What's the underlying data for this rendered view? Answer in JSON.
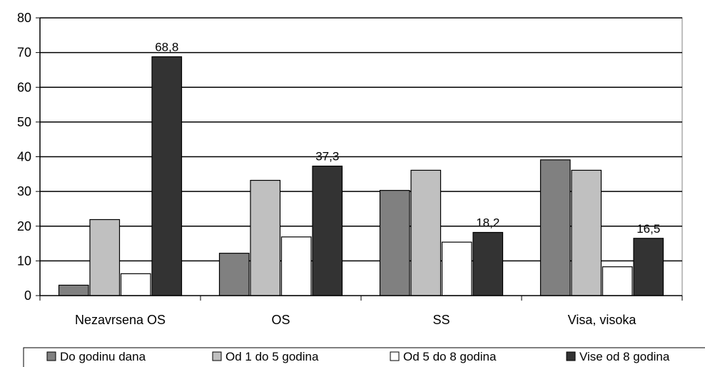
{
  "chart_data": {
    "type": "bar",
    "categories": [
      "Nezavrsena OS",
      "OS",
      "SS",
      "Visa, visoka"
    ],
    "series": [
      {
        "name": "Do godinu dana",
        "color": "#808080",
        "values": [
          3,
          12.2,
          30.3,
          39.1
        ]
      },
      {
        "name": "Od 1 do 5 godina",
        "color": "#c0c0c0",
        "values": [
          21.9,
          33.2,
          36.1,
          36.1
        ]
      },
      {
        "name": "Od 5 do 8 godina",
        "color": "#ffffff",
        "values": [
          6.3,
          16.9,
          15.4,
          8.3
        ]
      },
      {
        "name": "Vise od 8 godina",
        "color": "#333333",
        "values": [
          68.8,
          37.3,
          18.2,
          16.5
        ]
      }
    ],
    "data_labels": [
      {
        "category": 0,
        "series": 3,
        "text": "68,8"
      },
      {
        "category": 1,
        "series": 3,
        "text": "37,3"
      },
      {
        "category": 2,
        "series": 3,
        "text": "18,2"
      },
      {
        "category": 3,
        "series": 3,
        "text": "16,5"
      }
    ],
    "yticks": [
      "0",
      "10",
      "20",
      "30",
      "40",
      "50",
      "60",
      "70",
      "80"
    ],
    "ylim": [
      0,
      80
    ],
    "grid": true,
    "legend_position": "bottom",
    "title": "",
    "xlabel": "",
    "ylabel": ""
  }
}
